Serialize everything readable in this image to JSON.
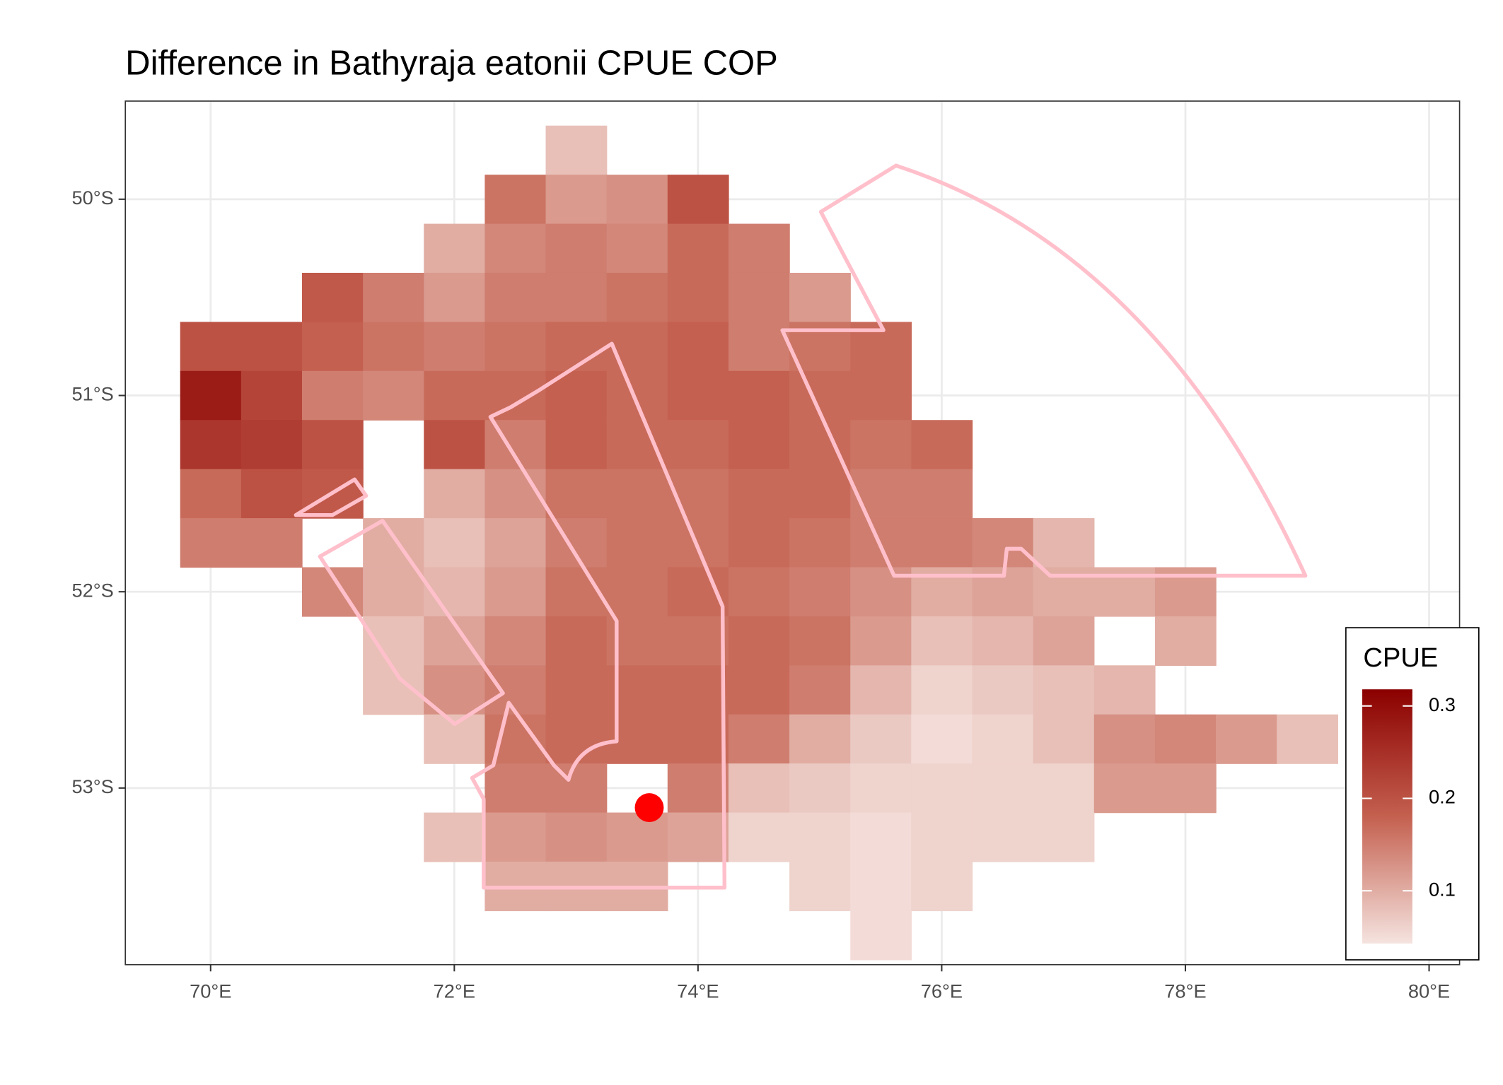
{
  "chart_data": {
    "type": "heatmap",
    "title": "Difference in  Bathyraja eatonii CPUE COP",
    "x": [
      70,
      70.5,
      71,
      71.5,
      72,
      72.5,
      73,
      73.5,
      74,
      74.5,
      75,
      75.5,
      76,
      76.5,
      77,
      77.5,
      78,
      78.5,
      79
    ],
    "y": [
      -49.75,
      -50,
      -50.25,
      -50.5,
      -50.75,
      -51,
      -51.25,
      -51.5,
      -51.75,
      -52,
      -52.25,
      -52.5,
      -52.75,
      -53,
      -53.25,
      -53.5,
      -53.75
    ],
    "z": [
      [
        null,
        null,
        null,
        null,
        null,
        null,
        0.08,
        null,
        null,
        null,
        null,
        null,
        null,
        null,
        null,
        null,
        null,
        null,
        null
      ],
      [
        null,
        null,
        null,
        null,
        null,
        0.16,
        0.12,
        0.13,
        0.2,
        null,
        null,
        null,
        null,
        null,
        null,
        null,
        null,
        null,
        null
      ],
      [
        null,
        null,
        null,
        null,
        0.1,
        0.14,
        0.15,
        0.14,
        0.17,
        0.15,
        null,
        null,
        null,
        null,
        null,
        null,
        null,
        null,
        null
      ],
      [
        null,
        null,
        0.19,
        0.15,
        0.12,
        0.15,
        0.15,
        0.16,
        0.17,
        0.15,
        0.12,
        null,
        null,
        null,
        null,
        null,
        null,
        null,
        null
      ],
      [
        0.2,
        0.2,
        0.18,
        0.16,
        0.15,
        0.16,
        0.17,
        0.17,
        0.18,
        0.15,
        0.16,
        0.17,
        null,
        null,
        null,
        null,
        null,
        null,
        null
      ],
      [
        0.28,
        0.22,
        0.15,
        0.14,
        0.17,
        0.17,
        0.18,
        0.17,
        0.18,
        0.18,
        0.17,
        0.17,
        null,
        null,
        null,
        null,
        null,
        null,
        null
      ],
      [
        0.24,
        0.23,
        0.2,
        null,
        0.2,
        0.15,
        0.18,
        0.17,
        0.17,
        0.18,
        0.17,
        0.16,
        0.17,
        null,
        null,
        null,
        null,
        null,
        null
      ],
      [
        0.17,
        0.2,
        0.19,
        null,
        0.1,
        0.13,
        0.16,
        0.16,
        0.16,
        0.17,
        0.17,
        0.15,
        0.15,
        null,
        null,
        null,
        null,
        null,
        null
      ],
      [
        0.15,
        0.15,
        null,
        0.1,
        0.08,
        0.11,
        0.15,
        0.16,
        0.16,
        0.17,
        0.16,
        0.15,
        0.15,
        0.14,
        0.09,
        null,
        null,
        null,
        null
      ],
      [
        null,
        null,
        0.14,
        0.1,
        0.09,
        0.12,
        0.16,
        0.16,
        0.17,
        0.16,
        0.15,
        0.13,
        0.1,
        0.11,
        0.1,
        0.1,
        0.12,
        null,
        null
      ],
      [
        null,
        null,
        null,
        0.08,
        0.11,
        0.14,
        0.17,
        0.16,
        0.16,
        0.17,
        0.16,
        0.12,
        0.08,
        0.09,
        0.11,
        null,
        0.1,
        null,
        null
      ],
      [
        null,
        null,
        null,
        0.08,
        0.13,
        0.15,
        0.17,
        0.17,
        0.17,
        0.17,
        0.15,
        0.09,
        0.06,
        0.07,
        0.08,
        0.09,
        null,
        null,
        null
      ],
      [
        null,
        null,
        null,
        null,
        0.08,
        0.16,
        0.17,
        0.17,
        0.17,
        0.15,
        0.1,
        0.07,
        0.05,
        0.06,
        0.08,
        0.13,
        0.14,
        0.12,
        0.08
      ],
      [
        null,
        null,
        null,
        null,
        null,
        0.15,
        0.15,
        null,
        0.15,
        0.08,
        0.07,
        0.06,
        0.06,
        0.06,
        0.06,
        0.12,
        0.12,
        null,
        null
      ],
      [
        null,
        null,
        null,
        null,
        0.08,
        0.12,
        0.13,
        0.12,
        0.11,
        0.06,
        0.06,
        0.05,
        0.06,
        0.06,
        0.06,
        null,
        null,
        null,
        null
      ],
      [
        null,
        null,
        null,
        null,
        null,
        0.1,
        0.1,
        0.1,
        null,
        null,
        0.06,
        0.05,
        0.06,
        null,
        null,
        null,
        null,
        null,
        null
      ],
      [
        null,
        null,
        null,
        null,
        null,
        null,
        null,
        null,
        null,
        null,
        null,
        0.05,
        null,
        null,
        null,
        null,
        null,
        null,
        null
      ]
    ],
    "cell_width": 0.5,
    "cell_height": 0.25,
    "xlim": [
      69.3,
      80.25
    ],
    "ylim": [
      -53.9,
      -49.5
    ],
    "xticks": [
      {
        "value": 70,
        "label": "70°E"
      },
      {
        "value": 72,
        "label": "72°E"
      },
      {
        "value": 74,
        "label": "74°E"
      },
      {
        "value": 76,
        "label": "76°E"
      },
      {
        "value": 78,
        "label": "78°E"
      },
      {
        "value": 80,
        "label": "80°E"
      }
    ],
    "yticks": [
      {
        "value": -50,
        "label": "50°S"
      },
      {
        "value": -51,
        "label": "51°S"
      },
      {
        "value": -52,
        "label": "52°S"
      },
      {
        "value": -53,
        "label": "53°S"
      }
    ],
    "grid": true,
    "legend_title": "CPUE",
    "colorlim": [
      0.043,
      0.318
    ],
    "colorbar_ticks": [
      0.1,
      0.2,
      0.3
    ],
    "colors": [
      "#f5e3df",
      "#c4604f",
      "#8b0000"
    ],
    "point": {
      "x": 73.6,
      "y": -53.1,
      "color": "#ff0000"
    }
  }
}
